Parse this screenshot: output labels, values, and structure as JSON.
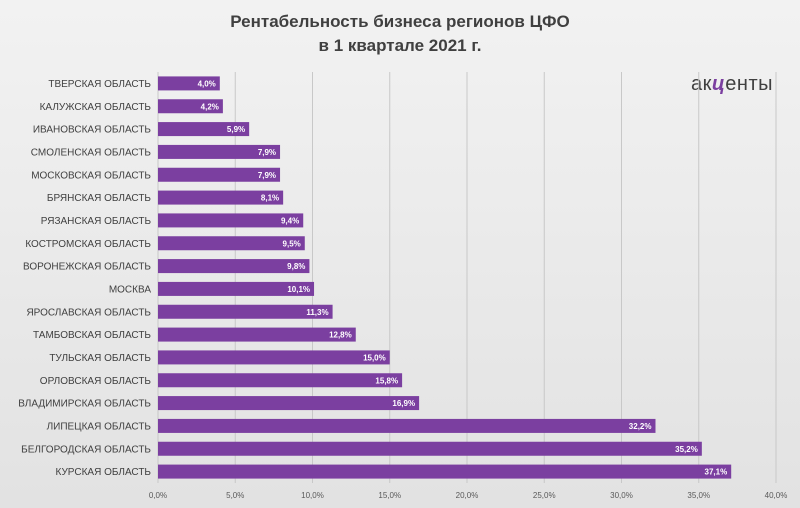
{
  "chart_data": {
    "type": "bar",
    "orientation": "horizontal",
    "title_line1": "Рентабельность бизнеса регионов ЦФО",
    "title_line2": "в 1 квартале 2021 г.",
    "categories": [
      "ТВЕРСКАЯ ОБЛАСТЬ",
      "КАЛУЖСКАЯ ОБЛАСТЬ",
      "ИВАНОВСКАЯ ОБЛАСТЬ",
      "СМОЛЕНСКАЯ ОБЛАСТЬ",
      "МОСКОВСКАЯ ОБЛАСТЬ",
      "БРЯНСКАЯ ОБЛАСТЬ",
      "РЯЗАНСКАЯ ОБЛАСТЬ",
      "КОСТРОМСКАЯ ОБЛАСТЬ",
      "ВОРОНЕЖСКАЯ ОБЛАСТЬ",
      "МОСКВА",
      "ЯРОСЛАВСКАЯ ОБЛАСТЬ",
      "ТАМБОВСКАЯ ОБЛАСТЬ",
      "ТУЛЬСКАЯ ОБЛАСТЬ",
      "ОРЛОВСКАЯ ОБЛАСТЬ",
      "ВЛАДИМИРСКАЯ ОБЛАСТЬ",
      "ЛИПЕЦКАЯ ОБЛАСТЬ",
      "БЕЛГОРОДСКАЯ ОБЛАСТЬ",
      "КУРСКАЯ ОБЛАСТЬ"
    ],
    "values": [
      4.0,
      4.2,
      5.9,
      7.9,
      7.9,
      8.1,
      9.4,
      9.5,
      9.8,
      10.1,
      11.3,
      12.8,
      15.0,
      15.8,
      16.9,
      32.2,
      35.2,
      37.1
    ],
    "value_labels": [
      "4,0%",
      "4,2%",
      "5,9%",
      "7,9%",
      "7,9%",
      "8,1%",
      "9,4%",
      "9,5%",
      "9,8%",
      "10,1%",
      "11,3%",
      "12,8%",
      "15,0%",
      "15,8%",
      "16,9%",
      "32,2%",
      "35,2%",
      "37,1%"
    ],
    "x_ticks": [
      0,
      5,
      10,
      15,
      20,
      25,
      30,
      35,
      40
    ],
    "x_tick_labels": [
      "0,0%",
      "5,0%",
      "10,0%",
      "15,0%",
      "20,0%",
      "25,0%",
      "30,0%",
      "35,0%",
      "40,0%"
    ],
    "xlim": [
      0,
      40
    ],
    "grid": "vertical",
    "bar_color": "#7b3fa0"
  },
  "logo": {
    "left": "ак",
    "mid": "ц",
    "right": "енты"
  }
}
